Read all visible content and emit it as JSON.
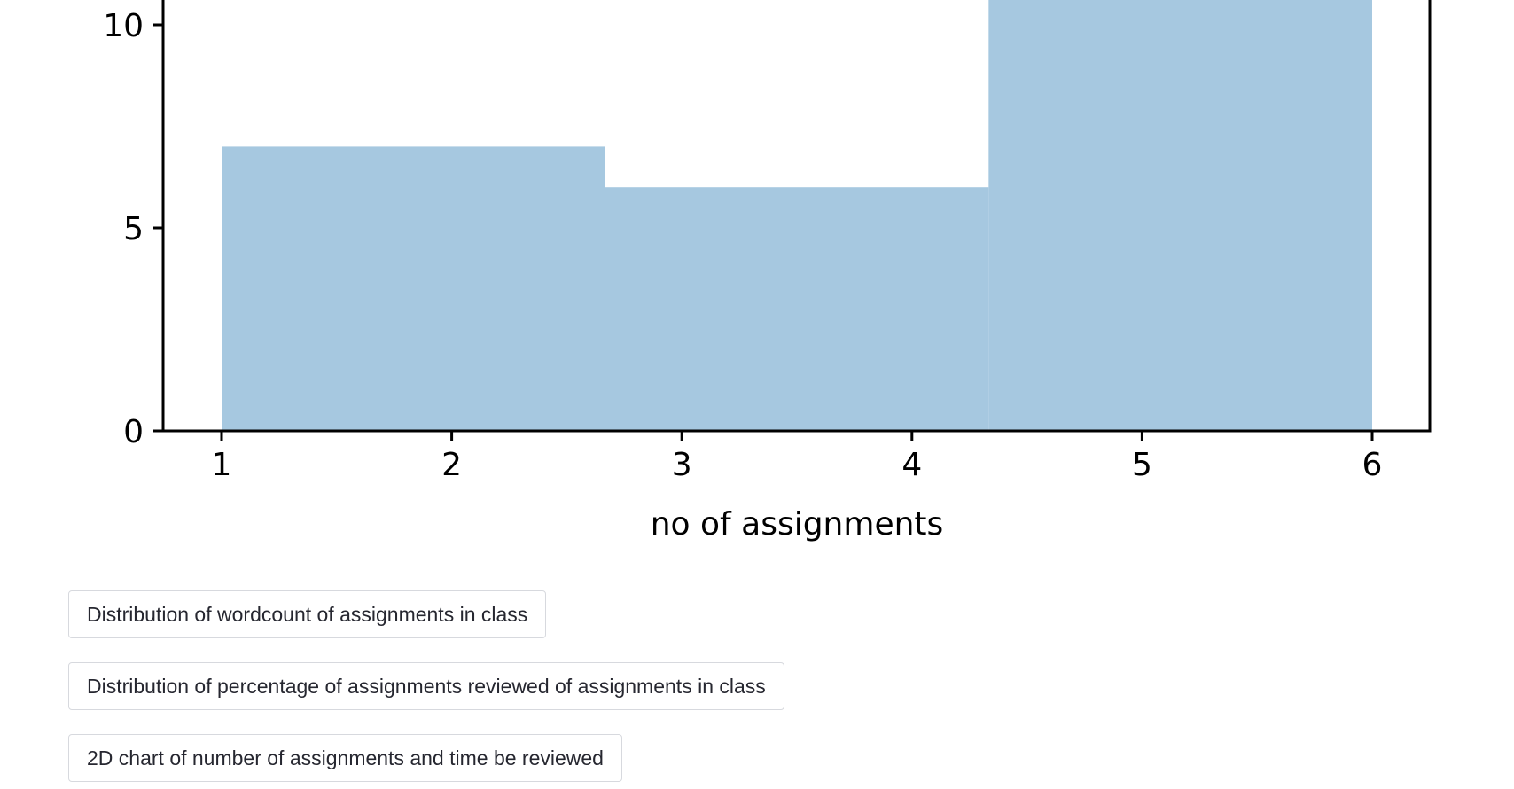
{
  "chart_data": {
    "type": "histogram",
    "title": "",
    "xlabel": "no of assignments",
    "ylabel": "",
    "bins": [
      {
        "start": 1.0,
        "end": 2.6667,
        "count": 7
      },
      {
        "start": 2.6667,
        "end": 4.3333,
        "count": 6
      },
      {
        "start": 4.3333,
        "end": 6.0,
        "count": 11
      }
    ],
    "x_ticks": [
      1,
      2,
      3,
      4,
      5,
      6
    ],
    "y_ticks": [
      0,
      5,
      10
    ],
    "xlim": [
      0.75,
      6.25
    ],
    "ylim": [
      0,
      11.5
    ],
    "bar_color": "#a6c8e0",
    "grid": false
  },
  "buttons": [
    {
      "label": "Distribution of wordcount of assignments in class"
    },
    {
      "label": "Distribution of percentage of assignments reviewed of assignments in class"
    },
    {
      "label": "2D chart of number of assignments and time be reviewed"
    }
  ]
}
